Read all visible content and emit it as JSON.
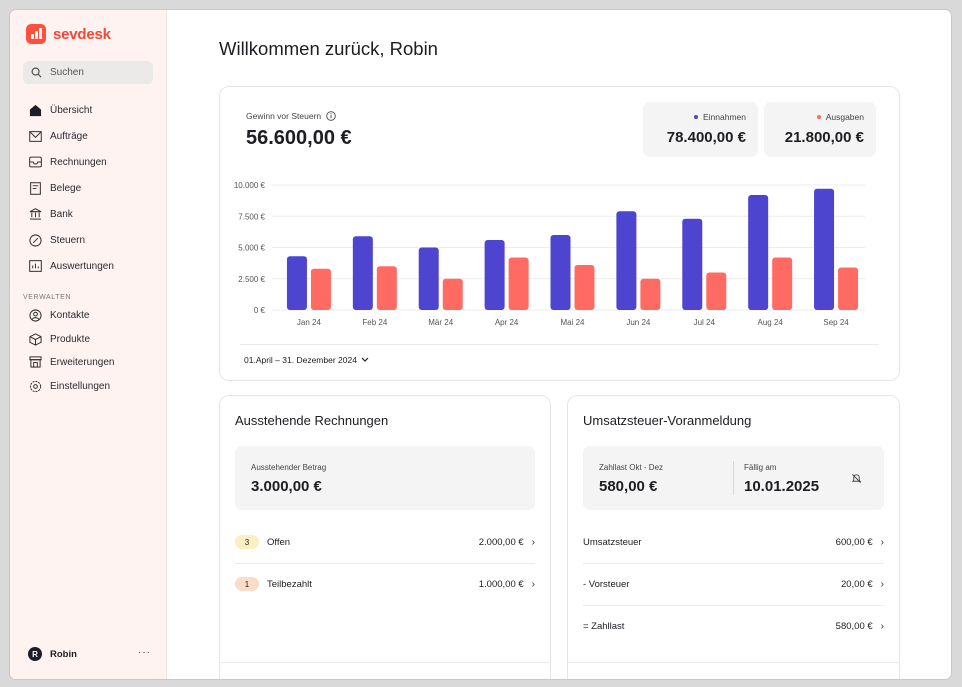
{
  "brand": {
    "name": "sevdesk",
    "color": "#ff4f3f"
  },
  "search": {
    "placeholder": "Suchen",
    "icon": "search-icon"
  },
  "sidebar": {
    "items": [
      {
        "label": "Übersicht",
        "icon": "home-icon",
        "active": true
      },
      {
        "label": "Aufträge",
        "icon": "mail-icon"
      },
      {
        "label": "Rechnungen",
        "icon": "inbox-icon"
      },
      {
        "label": "Belege",
        "icon": "receipt-icon"
      },
      {
        "label": "Bank",
        "icon": "bank-icon"
      },
      {
        "label": "Steuern",
        "icon": "percent-icon"
      },
      {
        "label": "Auswertungen",
        "icon": "chart-icon"
      }
    ],
    "section_label": "VERWALTEN",
    "admin_items": [
      {
        "label": "Kontakte",
        "icon": "user-circle-icon"
      },
      {
        "label": "Produkte",
        "icon": "box-icon"
      },
      {
        "label": "Erweiterungen",
        "icon": "store-icon"
      },
      {
        "label": "Einstellungen",
        "icon": "gear-icon"
      }
    ],
    "user": {
      "initial": "R",
      "name": "Robin",
      "menu": "···"
    }
  },
  "main": {
    "title": "Willkommen zurück, Robin",
    "kpi": {
      "label": "Gewinn vor Steuern",
      "value": "56.600,00 €",
      "income": {
        "label": "Einnahmen",
        "value": "78.400,00 €"
      },
      "expenses": {
        "label": "Ausgaben",
        "value": "21.800,00 €"
      }
    },
    "date_range": "01.April – 31. Dezember 2024"
  },
  "colors": {
    "income": "#4d44d0",
    "expenses": "#ff6b63",
    "open_badge": "#fbefc2",
    "partial_badge": "#fbdcc6"
  },
  "chart_data": {
    "type": "bar",
    "categories": [
      "Jan 24",
      "Feb 24",
      "Mär 24",
      "Apr 24",
      "Mai 24",
      "Jun 24",
      "Jul 24",
      "Aug 24",
      "Sep 24"
    ],
    "series": [
      {
        "name": "Einnahmen",
        "values": [
          4300,
          5900,
          5000,
          5600,
          6000,
          7900,
          7300,
          9200,
          9700
        ]
      },
      {
        "name": "Ausgaben",
        "values": [
          3300,
          3500,
          2500,
          4200,
          3600,
          2500,
          3000,
          4200,
          3400
        ]
      }
    ],
    "ylim": [
      0,
      10000
    ],
    "yticks": [
      "0 €",
      "2.500 €",
      "5.000 €",
      "7.500 €",
      "10.000 €"
    ],
    "ytick_values": [
      0,
      2500,
      5000,
      7500,
      10000
    ],
    "grid": true
  },
  "outstanding": {
    "title": "Ausstehende Rechnungen",
    "box_label": "Ausstehender Betrag",
    "box_value": "3.000,00 €",
    "rows": [
      {
        "count": "3",
        "label": "Offen",
        "amount": "2.000,00 €"
      },
      {
        "count": "1",
        "label": "Teilbezahlt",
        "amount": "1.000,00 €"
      }
    ]
  },
  "vat": {
    "title": "Umsatzsteuer-Voranmeldung",
    "liability_label": "Zahllast Okt - Dez",
    "liability_value": "580,00 €",
    "due_label": "Fällig am",
    "due_value": "10.01.2025",
    "rows": [
      {
        "label": "Umsatzsteuer",
        "amount": "600,00 €"
      },
      {
        "label": "- Vorsteuer",
        "amount": "20,00 €"
      },
      {
        "label": "= Zahllast",
        "amount": "580,00 €"
      }
    ]
  }
}
